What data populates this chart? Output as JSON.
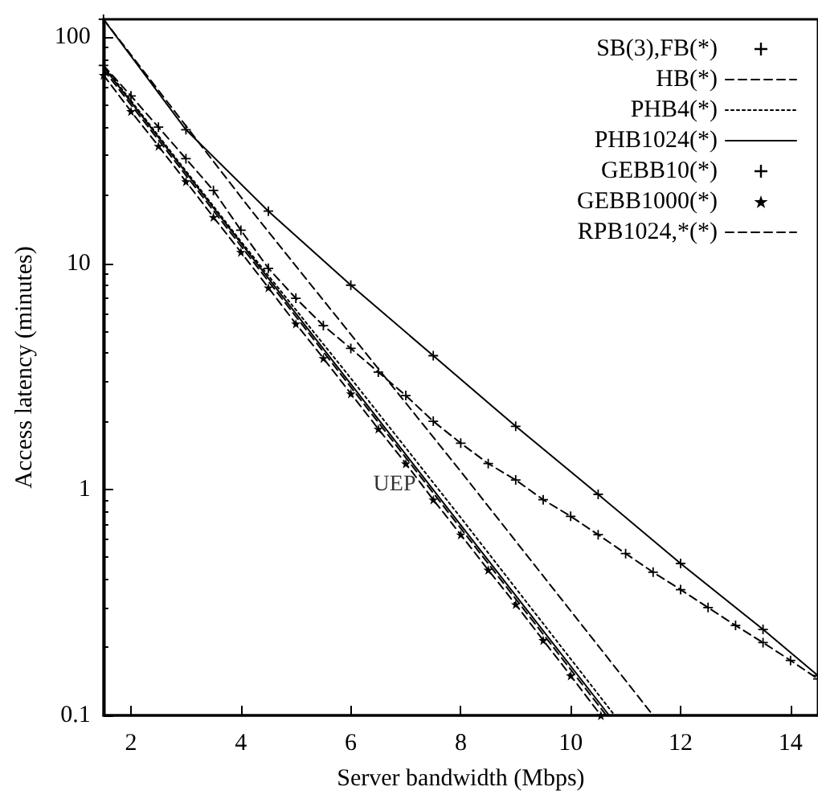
{
  "chart_data": {
    "type": "line",
    "xlabel": "Server bandwidth (Mbps)",
    "ylabel": "Access latency (minutes)",
    "xlim": [
      1.5,
      14.5
    ],
    "xticks": [
      2,
      4,
      6,
      8,
      10,
      12,
      14
    ],
    "ylim": [
      0.1,
      120
    ],
    "yticks": [
      0.1,
      1,
      10,
      100
    ],
    "log": "y",
    "grid": false,
    "legend": "top right",
    "annotations": [
      {
        "text": "UEP",
        "x": 7.3,
        "y": 1.05
      }
    ],
    "series": [
      {
        "name": "SB(3),FB(*)",
        "color": "#000000",
        "marker": "cross",
        "line_style": "solid",
        "x": [
          1.5,
          3,
          4.5,
          6,
          7.5,
          9,
          10.5,
          12,
          13.5,
          14.5
        ],
        "values": [
          120,
          39,
          17,
          8,
          3.9,
          1.9,
          0.95,
          0.47,
          0.24,
          0.15
        ]
      },
      {
        "name": "HB(*)",
        "color": "#000000",
        "marker": "none",
        "line_style": "dashed",
        "x": [
          1.5,
          4.2,
          8,
          11.5
        ],
        "values": [
          120,
          17,
          1.2,
          0.1
        ]
      },
      {
        "name": "PHB4(*)",
        "color": "#000000",
        "marker": "none",
        "line_style": "dotted",
        "x": [
          1.5,
          4,
          6,
          8,
          10.8
        ],
        "values": [
          75,
          12.5,
          3.1,
          0.75,
          0.1
        ]
      },
      {
        "name": "PHB1024(*)",
        "color": "#000000",
        "marker": "none",
        "line_style": "solid",
        "x": [
          1.5,
          10.7
        ],
        "values": [
          74,
          0.1
        ]
      },
      {
        "name": "GEBB10(*)",
        "color": "#000000",
        "marker": "cross",
        "line_style": "dashed",
        "x": [
          1.5,
          2,
          2.5,
          3,
          3.5,
          4,
          4.5,
          5,
          5.5,
          6,
          6.5,
          7,
          7.5,
          8,
          8.5,
          9,
          9.5,
          10,
          10.5,
          11,
          11.5,
          12,
          12.5,
          13,
          13.5,
          14,
          14.5
        ],
        "values": [
          75,
          55,
          40,
          29,
          21,
          14,
          9.5,
          7,
          5.3,
          4.2,
          3.3,
          2.6,
          2.0,
          1.6,
          1.3,
          1.1,
          0.9,
          0.76,
          0.63,
          0.52,
          0.43,
          0.36,
          0.3,
          0.25,
          0.21,
          0.175,
          0.145
        ]
      },
      {
        "name": "GEBB1000(*)",
        "color": "#000000",
        "marker": "star",
        "line_style": "dashed",
        "x": [
          1.5,
          2,
          2.5,
          3,
          3.5,
          4,
          4.5,
          5,
          5.5,
          6,
          6.5,
          7,
          7.5,
          8,
          8.5,
          9,
          9.5,
          10,
          10.55
        ],
        "values": [
          68,
          47,
          33,
          23,
          16,
          11.2,
          7.8,
          5.4,
          3.8,
          2.65,
          1.85,
          1.3,
          0.9,
          0.63,
          0.44,
          0.31,
          0.215,
          0.15,
          0.1
        ]
      },
      {
        "name": "RPB1024,*(*)",
        "color": "#000000",
        "marker": "none",
        "line_style": "dashed",
        "x": [
          1.5,
          10.65
        ],
        "values": [
          72,
          0.1
        ]
      }
    ]
  }
}
